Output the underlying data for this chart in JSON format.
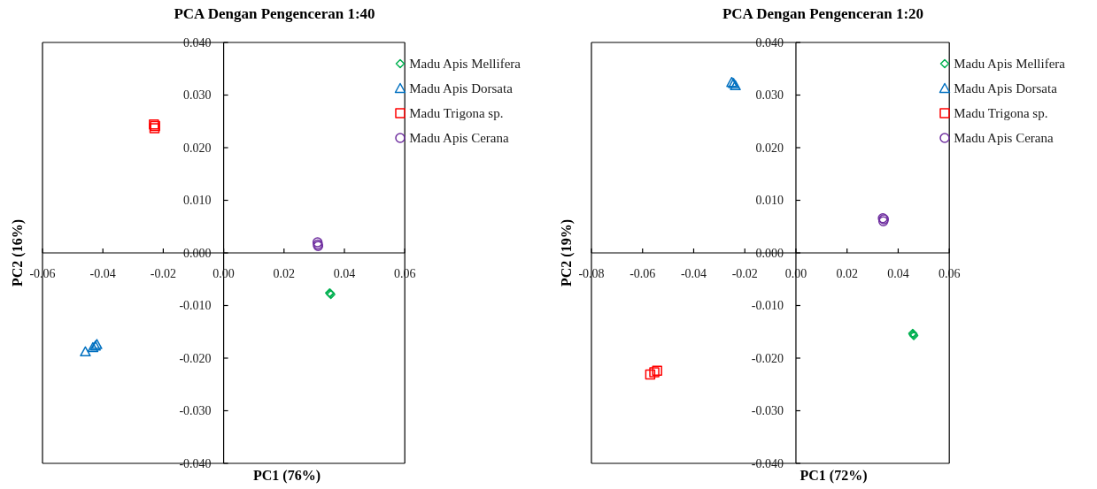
{
  "chart_data": [
    {
      "type": "scatter",
      "title": "PCA Dengan Pengenceran 1:40",
      "xlabel": "PC1 (76%)",
      "ylabel": "PC2 (16%)",
      "xlim": [
        -0.06,
        0.06
      ],
      "ylim": [
        -0.04,
        0.04
      ],
      "xticks": [
        -0.06,
        -0.04,
        -0.02,
        {
          "value": 0,
          "label": "0.00"
        },
        0.02,
        0.04,
        0.06
      ],
      "yticks": [
        {
          "value": -0.04,
          "label": "-0.040"
        },
        {
          "value": -0.03,
          "label": "-0.030"
        },
        {
          "value": -0.02,
          "label": "-0.020"
        },
        {
          "value": -0.01,
          "label": "-0.010"
        },
        {
          "value": 0,
          "label": "0.000"
        },
        {
          "value": 0.01,
          "label": "0.010"
        },
        {
          "value": 0.02,
          "label": "0.020"
        },
        {
          "value": 0.03,
          "label": "0.030"
        },
        {
          "value": 0.04,
          "label": "0.040"
        }
      ],
      "legend": "top right",
      "series": [
        {
          "name": "Madu Apis Mellifera",
          "color": "#00b050",
          "marker": "diamond",
          "x": [
            0.0351,
            0.0355,
            0.0353
          ],
          "values": [
            -0.0076,
            -0.0079,
            -0.0077
          ]
        },
        {
          "name": "Madu Apis Dorsata",
          "color": "#0070c0",
          "marker": "triangle",
          "x": [
            -0.0458,
            -0.0433,
            -0.0425,
            -0.042
          ],
          "values": [
            -0.0188,
            -0.018,
            -0.0177,
            -0.0174
          ]
        },
        {
          "name": "Madu Trigona sp.",
          "color": "#ff0000",
          "marker": "square",
          "x": [
            -0.0231,
            -0.0227,
            -0.0229
          ],
          "values": [
            0.0244,
            0.0241,
            0.0237
          ]
        },
        {
          "name": "Madu Apis Cerana",
          "color": "#7030a0",
          "marker": "circle",
          "x": [
            0.0311,
            0.0313,
            0.0312
          ],
          "values": [
            0.002,
            0.0013,
            0.0016
          ]
        }
      ]
    },
    {
      "type": "scatter",
      "title": "PCA Dengan Pengenceran 1:20",
      "xlabel": "PC1 (72%)",
      "ylabel": "PC2 (19%)",
      "xlim": [
        -0.08,
        0.06
      ],
      "ylim": [
        -0.04,
        0.04
      ],
      "xticks": [
        -0.08,
        -0.06,
        -0.04,
        -0.02,
        {
          "value": 0,
          "label": "0.00"
        },
        0.02,
        0.04,
        0.06
      ],
      "yticks": [
        {
          "value": -0.04,
          "label": "-0.040"
        },
        {
          "value": -0.03,
          "label": "-0.030"
        },
        {
          "value": -0.02,
          "label": "-0.020"
        },
        {
          "value": -0.01,
          "label": "-0.010"
        },
        {
          "value": 0,
          "label": "0.000"
        },
        {
          "value": 0.01,
          "label": "0.010"
        },
        {
          "value": 0.02,
          "label": "0.020"
        },
        {
          "value": 0.03,
          "label": "0.030"
        },
        {
          "value": 0.04,
          "label": "0.040"
        }
      ],
      "legend": "top right",
      "series": [
        {
          "name": "Madu Apis Mellifera",
          "color": "#00b050",
          "marker": "diamond",
          "x": [
            0.0457,
            0.0461,
            0.0459
          ],
          "values": [
            -0.0153,
            -0.0157,
            -0.0155
          ]
        },
        {
          "name": "Madu Apis Dorsata",
          "color": "#0070c0",
          "marker": "triangle",
          "x": [
            -0.0251,
            -0.0244,
            -0.0237
          ],
          "values": [
            0.0324,
            0.0322,
            0.0318
          ]
        },
        {
          "name": "Madu Trigona sp.",
          "color": "#ff0000",
          "marker": "square",
          "x": [
            -0.057,
            -0.0554,
            -0.0543
          ],
          "values": [
            -0.0231,
            -0.0227,
            -0.0224
          ]
        },
        {
          "name": "Madu Apis Cerana",
          "color": "#7030a0",
          "marker": "circle",
          "x": [
            0.034,
            0.0344,
            0.0342
          ],
          "values": [
            0.0066,
            0.0064,
            0.006
          ]
        }
      ]
    }
  ]
}
